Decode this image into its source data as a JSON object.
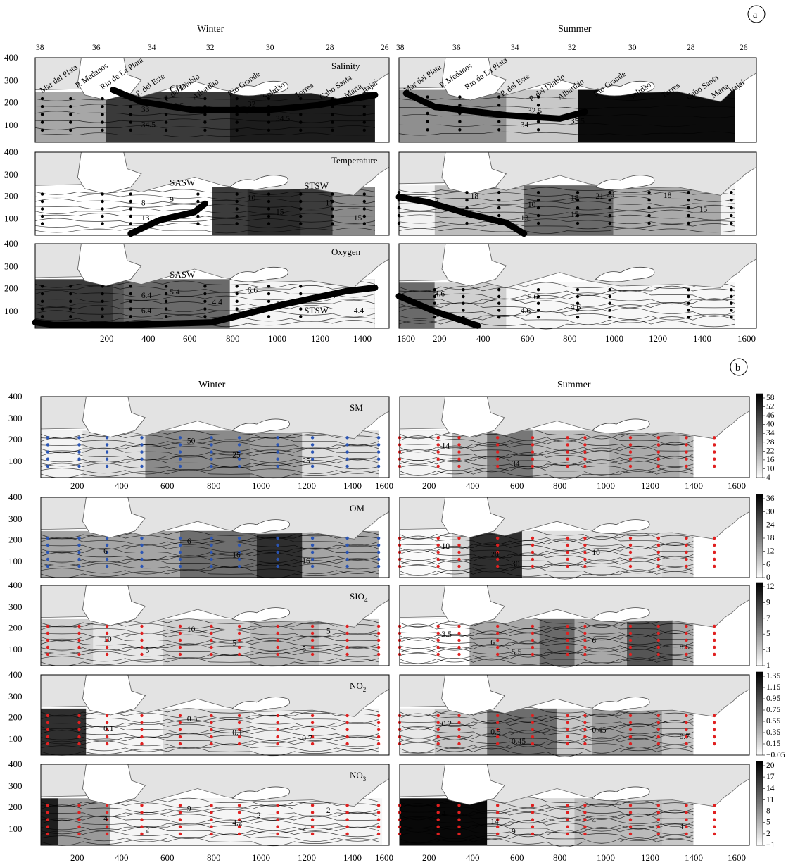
{
  "panel_a": {
    "marker": "a",
    "col_titles": [
      "Winter",
      "Summer"
    ],
    "lat_ticks_winter": [
      "38",
      "36",
      "34",
      "32",
      "30",
      "28",
      "26"
    ],
    "lat_ticks_summer": [
      "38",
      "36",
      "34",
      "32",
      "30",
      "28",
      "26"
    ],
    "depth_ticks": [
      "400",
      "300",
      "200",
      "100"
    ],
    "dist_ticks_winter": [
      "200",
      "400",
      "600",
      "800",
      "1000",
      "1200",
      "1400",
      "1600"
    ],
    "dist_ticks_summer": [
      "200",
      "400",
      "600",
      "800",
      "1000",
      "1200",
      "1400",
      "1600"
    ],
    "places": [
      "Mar del Plata",
      "P. Medanos",
      "Rio de La Plata",
      "P. del Este",
      "P. del Diablo",
      "Albardão",
      "Rio Grande",
      "Solidão",
      "Torres",
      "Cabo Santa",
      "Marta",
      "Itajaí"
    ],
    "places_summer": [
      "Mar del Plata",
      "P. Medanos",
      "Rio de La Plata",
      "P. del Este",
      "P. del Diablo",
      "Albardão",
      "Rio Grande",
      "Solidão",
      "Torres",
      "Cabo Santa",
      "Marta",
      "Itajaí"
    ],
    "rows": [
      {
        "variable": "Salinity",
        "winter": {
          "water_mass": "CW",
          "water_mass_2": "",
          "contour_labels": [
            "33",
            "29.5",
            "32",
            "34.5",
            "34.5"
          ]
        },
        "summer": {
          "contour_labels": [
            "32.5",
            "32.5",
            "34",
            "35.5"
          ]
        }
      },
      {
        "variable": "Temperature",
        "winter": {
          "water_mass": "SASW",
          "water_mass_2": "STSW",
          "contour_labels": [
            "8",
            "9",
            "10",
            "13",
            "15",
            "17",
            "15"
          ]
        },
        "summer": {
          "contour_labels": [
            "7",
            "10",
            "13",
            "15",
            "18",
            "18",
            "21",
            "20",
            "18",
            "15"
          ]
        }
      },
      {
        "variable": "Oxygen",
        "winter": {
          "water_mass": "SASW",
          "water_mass_2": "STSW",
          "contour_labels": [
            "6.4",
            "5.4",
            "6.6",
            "6.4",
            "5.4",
            "5.4",
            "4.4",
            "4.4"
          ]
        },
        "summer": {
          "contour_labels": [
            "4.6",
            "5.6",
            "4.6",
            "4.6"
          ]
        }
      }
    ]
  },
  "panel_b": {
    "marker": "b",
    "col_titles": [
      "Winter",
      "Summer"
    ],
    "depth_ticks": [
      "400",
      "300",
      "200",
      "100"
    ],
    "rows": [
      {
        "variable": "SM",
        "sub": "",
        "winter_labels": [
          "50",
          "25",
          "25"
        ],
        "summer_labels": [
          "14",
          "34"
        ],
        "colorbar": [
          "58",
          "52",
          "46",
          "40",
          "34",
          "28",
          "22",
          "16",
          "10",
          "4"
        ]
      },
      {
        "variable": "OM",
        "sub": "",
        "winter_labels": [
          "6",
          "16",
          "16",
          "6"
        ],
        "summer_labels": [
          "10",
          "30",
          "20",
          "10"
        ],
        "colorbar": [
          "36",
          "30",
          "24",
          "18",
          "12",
          "6",
          "0"
        ]
      },
      {
        "variable": "SIO",
        "sub": "4",
        "winter_labels": [
          "10",
          "5",
          "5",
          "10",
          "5",
          "5"
        ],
        "summer_labels": [
          "3.5",
          "5.5",
          "6",
          "6",
          "8.5"
        ],
        "colorbar": [
          "12",
          "9",
          "7",
          "5",
          "3",
          "1"
        ]
      },
      {
        "variable": "NO",
        "sub": "2",
        "winter_labels": [
          "0.5",
          "0.1",
          "0.7",
          "0.1"
        ],
        "summer_labels": [
          "0.2",
          "0.45",
          "0.5",
          "0.45",
          "0.7"
        ],
        "colorbar": [
          "1.35",
          "1.15",
          "0.95",
          "0.75",
          "0.55",
          "0.35",
          "0.15",
          "−0.05"
        ]
      },
      {
        "variable": "NO",
        "sub": "3",
        "winter_labels": [
          "9",
          "4.2",
          "2",
          "4",
          "2",
          "2",
          "2"
        ],
        "summer_labels": [
          "4",
          "9",
          "14",
          "4",
          "4"
        ],
        "colorbar": [
          "20",
          "17",
          "14",
          "11",
          "8",
          "5",
          "2",
          "−1"
        ]
      }
    ],
    "dist_ticks_winter": [
      "200",
      "400",
      "600",
      "800",
      "1000",
      "1200",
      "1400",
      "1600"
    ],
    "dist_ticks_summer": [
      "200",
      "400",
      "600",
      "800",
      "1000",
      "1200",
      "1400",
      "1600"
    ]
  },
  "chart_data": {
    "type": "heatmap",
    "title": "",
    "xlabel": "",
    "ylabel": "",
    "panels": [
      {
        "panel": "a",
        "variables": [
          "Salinity",
          "Temperature",
          "Oxygen"
        ],
        "seasons": [
          "Winter",
          "Summer"
        ],
        "x_range": [
          0,
          1600
        ],
        "y_range": [
          0,
          400
        ],
        "latitude_axis": [
          38,
          36,
          34,
          32,
          30,
          28,
          26
        ]
      },
      {
        "panel": "b",
        "variables": [
          "SM",
          "OM",
          "SIO4",
          "NO2",
          "NO3"
        ],
        "seasons": [
          "Winter",
          "Summer"
        ],
        "x_range": [
          0,
          1600
        ],
        "y_range": [
          0,
          400
        ],
        "colorbar_ranges": {
          "SM": [
            4,
            58
          ],
          "OM": [
            0,
            36
          ],
          "SIO4": [
            1,
            12
          ],
          "NO2": [
            -0.05,
            1.35
          ],
          "NO3": [
            -1,
            20
          ]
        }
      }
    ],
    "colors": {
      "land": "#e3e3e3",
      "outline": "#000000",
      "stations_winter_b": "#2a55b5",
      "stations_summer_b": "#e02020"
    }
  }
}
